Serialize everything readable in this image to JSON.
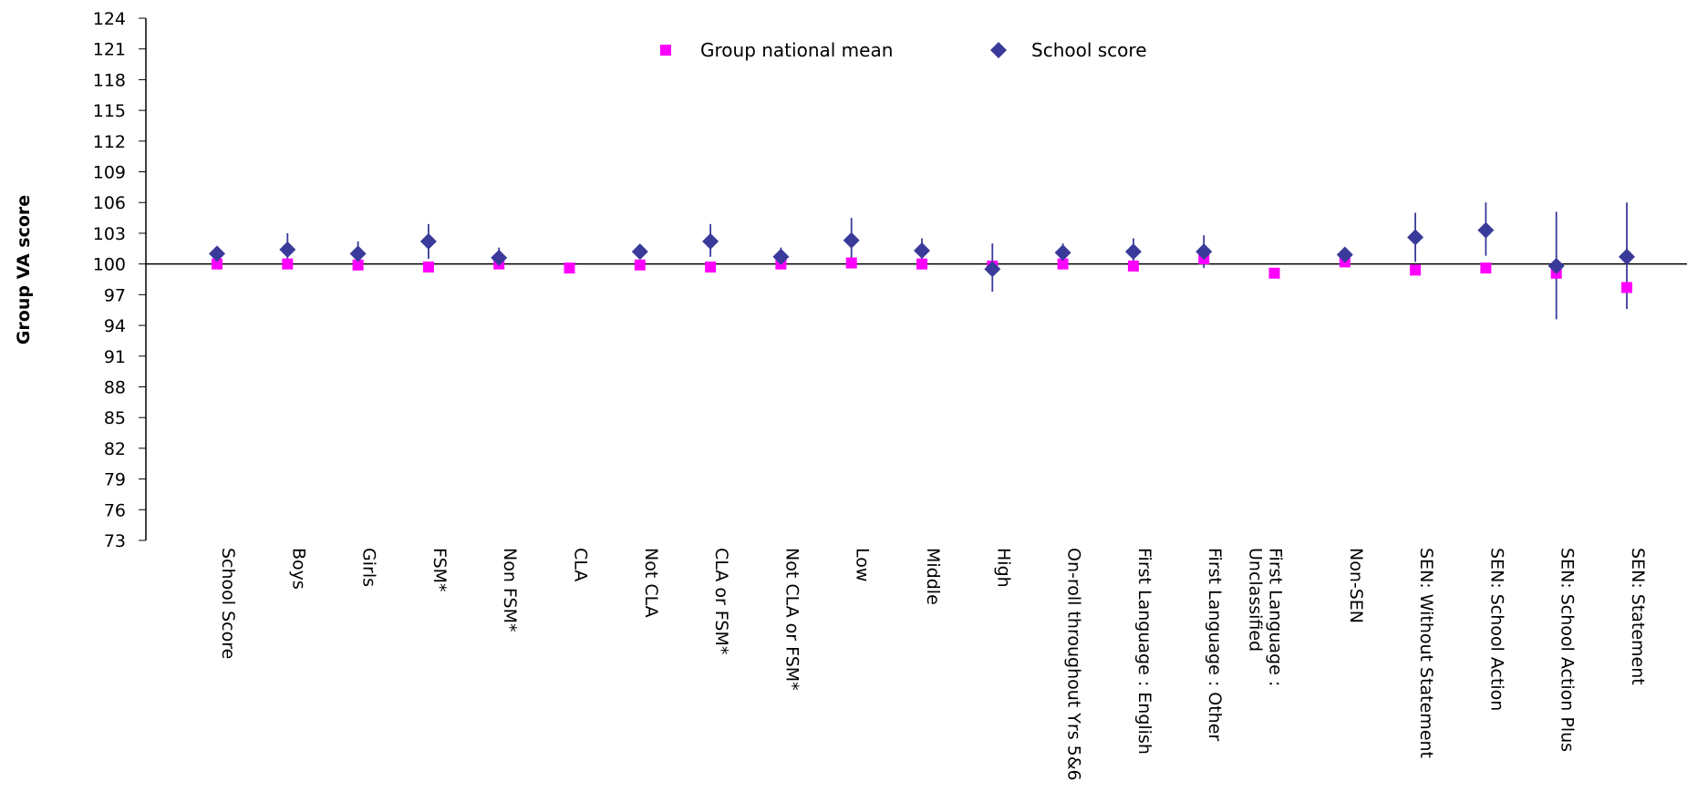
{
  "chart_data": {
    "type": "scatter",
    "title": "",
    "xlabel": "",
    "ylabel": "Group VA score",
    "ylim": [
      73,
      124
    ],
    "yticks": [
      124,
      121,
      118,
      115,
      112,
      109,
      106,
      103,
      100,
      97,
      94,
      91,
      88,
      85,
      82,
      79,
      76,
      73
    ],
    "reference_line": 100,
    "grid": false,
    "legend_position": "top-center",
    "categories": [
      "School Score",
      "Boys",
      "Girls",
      "FSM*",
      "Non FSM*",
      "CLA",
      "Not CLA",
      "CLA or FSM*",
      "Not CLA or FSM*",
      "Low",
      "Middle",
      "High",
      "On-roll throughout Yrs 5&6",
      "First Language : English",
      "First Language : Other",
      [
        "First Language :",
        "Unclassified"
      ],
      "Non-SEN",
      "SEN: Without Statement",
      "SEN: School Action",
      "SEN: School Action Plus",
      "SEN: Statement"
    ],
    "series": [
      {
        "name": "Group national mean",
        "marker": "square",
        "color": "#ff00ff",
        "values": [
          100.0,
          100.0,
          99.9,
          99.7,
          100.0,
          99.6,
          99.9,
          99.7,
          100.0,
          100.1,
          100.0,
          99.8,
          100.0,
          99.8,
          100.5,
          99.1,
          100.2,
          99.4,
          99.6,
          99.1,
          97.7
        ]
      },
      {
        "name": "School score",
        "marker": "diamond",
        "color": "#3a3a9a",
        "values": [
          101.0,
          101.4,
          101.0,
          102.2,
          100.6,
          null,
          101.2,
          102.2,
          100.7,
          102.3,
          101.3,
          99.5,
          101.1,
          101.2,
          101.2,
          null,
          100.9,
          102.6,
          103.3,
          99.8,
          100.7
        ],
        "error_low": [
          null,
          99.8,
          99.9,
          100.5,
          99.8,
          null,
          100.6,
          100.7,
          99.8,
          100.4,
          100.2,
          97.3,
          100.2,
          100.0,
          99.6,
          null,
          100.2,
          100.2,
          100.8,
          94.6,
          95.6
        ],
        "error_high": [
          null,
          103.0,
          102.2,
          103.9,
          101.6,
          null,
          101.8,
          103.9,
          101.6,
          104.5,
          102.5,
          102.0,
          102.0,
          102.5,
          102.8,
          null,
          101.6,
          105.0,
          106.0,
          105.1,
          106.0
        ]
      }
    ]
  }
}
